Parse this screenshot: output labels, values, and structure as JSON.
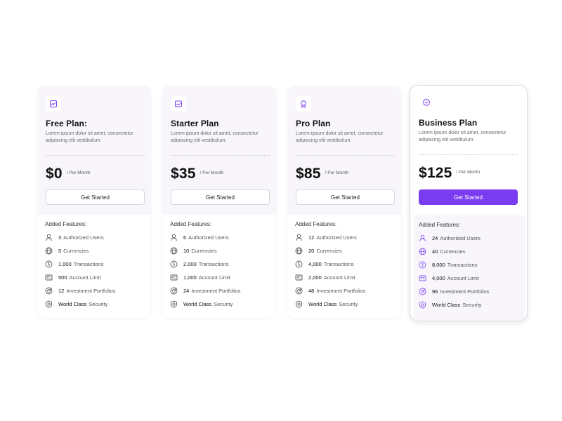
{
  "colors": {
    "accent": "#7a3cf0",
    "card_bg": "#f8f6fb",
    "text": "#111111",
    "muted": "#6b6b73"
  },
  "plans": [
    {
      "icon": "chart-icon",
      "title": "Free Plan:",
      "description": "Lorem ipsum dolor sit amet, consectetur adipiscing elit vestibulum.",
      "price": "$0",
      "period": "/ Per Month",
      "cta": "Get Started",
      "features_title": "Added Features:",
      "features": [
        {
          "icon": "user-icon",
          "num": "3",
          "label": "Authorized Users"
        },
        {
          "icon": "globe-icon",
          "num": "5",
          "label": "Currencies"
        },
        {
          "icon": "dollar-coin-icon",
          "num": "1,000",
          "label": "Transactions"
        },
        {
          "icon": "id-card-icon",
          "num": "500",
          "label": "Account Limit"
        },
        {
          "icon": "target-icon",
          "num": "12",
          "label": "Investment Portfolios"
        },
        {
          "icon": "shield-icon",
          "num": "World Class",
          "label": "Security"
        }
      ]
    },
    {
      "icon": "image-icon",
      "title": "Starter Plan",
      "description": "Lorem ipsum dolor sit amet, consectetur adipiscing elit vestibulum.",
      "price": "$35",
      "period": "/ Per Month",
      "cta": "Get Started",
      "features_title": "Added Features:",
      "features": [
        {
          "icon": "user-icon",
          "num": "6",
          "label": "Authorized Users"
        },
        {
          "icon": "globe-icon",
          "num": "10",
          "label": "Currencies"
        },
        {
          "icon": "dollar-coin-icon",
          "num": "2,000",
          "label": "Transactions"
        },
        {
          "icon": "id-card-icon",
          "num": "1,000",
          "label": "Account Limit"
        },
        {
          "icon": "target-icon",
          "num": "24",
          "label": "Investment Portfolios"
        },
        {
          "icon": "shield-icon",
          "num": "World Class",
          "label": "Security"
        }
      ]
    },
    {
      "icon": "award-icon",
      "title": "Pro Plan",
      "description": "Lorem ipsum dolor sit amet, consectetur adipiscing elit vestibulum.",
      "price": "$85",
      "period": "/ Per Month",
      "cta": "Get Started",
      "features_title": "Added Features:",
      "features": [
        {
          "icon": "user-icon",
          "num": "12",
          "label": "Authorized Users"
        },
        {
          "icon": "globe-icon",
          "num": "20",
          "label": "Currencies"
        },
        {
          "icon": "dollar-coin-icon",
          "num": "4,000",
          "label": "Transactions"
        },
        {
          "icon": "id-card-icon",
          "num": "2,000",
          "label": "Account Limit"
        },
        {
          "icon": "target-icon",
          "num": "48",
          "label": "Investment Portfolios"
        },
        {
          "icon": "shield-icon",
          "num": "World Class",
          "label": "Security"
        }
      ]
    },
    {
      "icon": "verified-badge-icon",
      "title": "Business Plan",
      "description": "Lorem ipsum dolor sit amet, consectetur adipiscing elit vestibulum.",
      "price": "$125",
      "period": "/ Per Month",
      "cta": "Get Started",
      "features_title": "Added Features:",
      "features": [
        {
          "icon": "user-icon",
          "num": "24",
          "label": "Authorized Users"
        },
        {
          "icon": "globe-icon",
          "num": "40",
          "label": "Currencies"
        },
        {
          "icon": "dollar-coin-icon",
          "num": "8,000",
          "label": "Transactions"
        },
        {
          "icon": "id-card-icon",
          "num": "4,000",
          "label": "Account Limit"
        },
        {
          "icon": "target-icon",
          "num": "96",
          "label": "Investment Portfolios"
        },
        {
          "icon": "shield-icon",
          "num": "World Class",
          "label": "Security"
        }
      ]
    }
  ]
}
